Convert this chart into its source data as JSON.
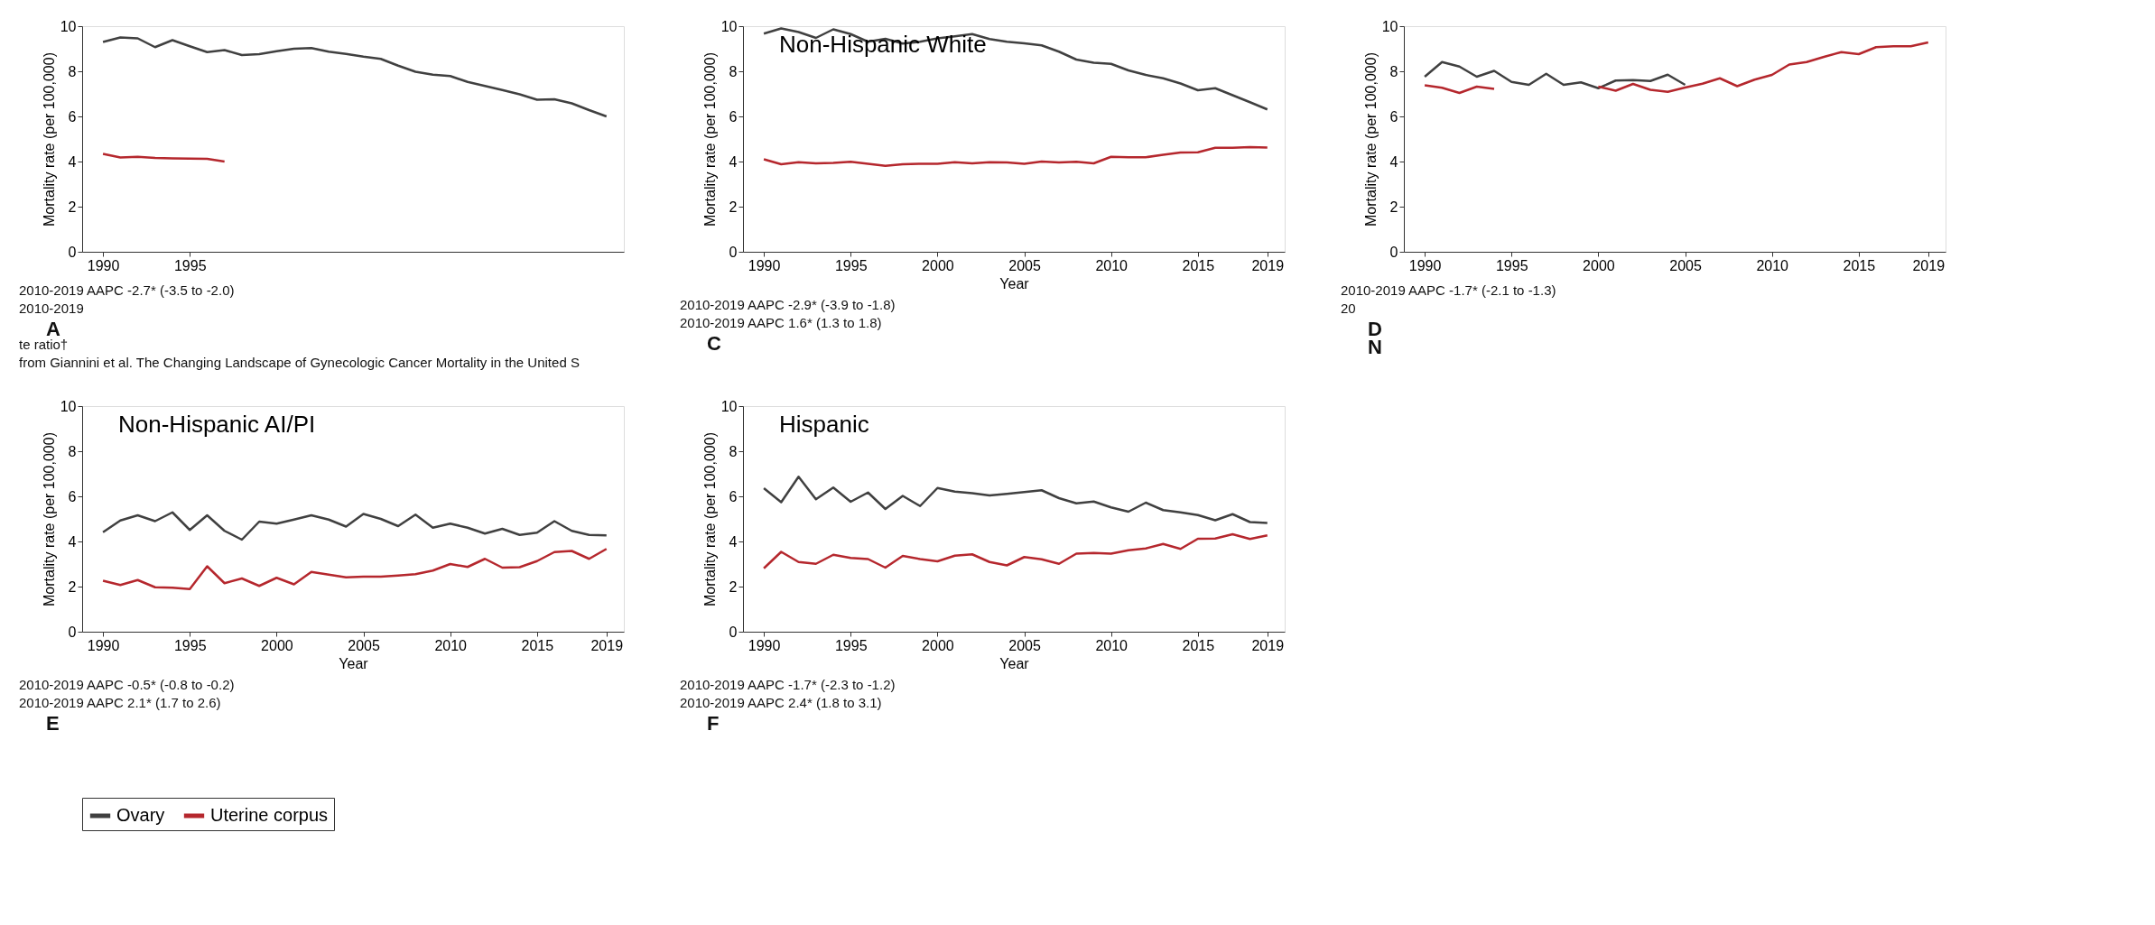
{
  "chart_data": [
    {
      "type": "line",
      "ylabel": "Mortality rate (per 100,000)",
      "xlim": [
        1988.8,
        2020
      ],
      "xticks": [
        1990,
        1995
      ],
      "ylim": [
        0,
        10
      ],
      "yticks": [
        0,
        2,
        4,
        6,
        8,
        10
      ],
      "tick_labels": "xy",
      "legend": "bottom",
      "grid": false,
      "x": [
        1990,
        1991,
        1992,
        1993,
        1994,
        1995,
        1996,
        1997,
        1998,
        1999,
        2000,
        2001,
        2002,
        2003,
        2004,
        2005,
        2006,
        2007,
        2008,
        2009,
        2010,
        2011,
        2012,
        2013,
        2014,
        2015,
        2016,
        2017,
        2018,
        2019
      ],
      "series": [
        {
          "name": "Ovary",
          "color": "#404040",
          "values": [
            9.3,
            9.5,
            9.46,
            9.07,
            9.38,
            9.11,
            8.85,
            8.94,
            8.72,
            8.76,
            8.89,
            9.0,
            9.03,
            8.87,
            8.77,
            8.65,
            8.55,
            8.25,
            7.98,
            7.85,
            7.79,
            7.53,
            7.35,
            7.17,
            6.98,
            6.74,
            6.76,
            6.58,
            6.28,
            6.0
          ]
        },
        {
          "name": "Uterine corpus",
          "color": "#b5272d",
          "values": [
            4.34,
            4.18,
            4.21,
            4.16,
            4.14,
            4.13,
            4.12,
            4.0,
            null,
            null,
            null,
            null,
            null,
            null,
            null,
            null,
            null,
            null,
            null,
            null,
            null,
            null,
            null,
            null,
            null,
            null,
            null,
            null,
            null,
            null
          ]
        }
      ],
      "annotations": [
        "2010-2019 AAPC -2.7* (-3.5 to -2.0)",
        "2010-2019",
        "A",
        "te ratio†",
        "from Giannini et al. The Changing Landscape of Gynecologic Cancer Mortality in the United S"
      ]
    },
    {
      "type": "line",
      "title": "Non-Hispanic White",
      "xlabel": "Year",
      "ylabel": "Mortality rate (per 100,000)",
      "xlim": [
        1988.8,
        2020
      ],
      "xticks": [
        1990,
        1995,
        2000,
        2005,
        2010,
        2015,
        2019
      ],
      "ylim": [
        0,
        10
      ],
      "yticks": [
        0,
        2,
        4,
        6,
        8,
        10
      ],
      "grid": false,
      "legend": false,
      "x": [
        1990,
        1991,
        1992,
        1993,
        1994,
        1995,
        1996,
        1997,
        1998,
        1999,
        2000,
        2001,
        2002,
        2003,
        2004,
        2005,
        2006,
        2007,
        2008,
        2009,
        2010,
        2011,
        2012,
        2013,
        2014,
        2015,
        2016,
        2017,
        2018,
        2019
      ],
      "series": [
        {
          "color": "#404040",
          "values": [
            9.67,
            9.9,
            9.74,
            9.48,
            9.86,
            9.65,
            9.31,
            9.44,
            9.23,
            9.31,
            9.46,
            9.55,
            9.65,
            9.43,
            9.31,
            9.24,
            9.15,
            8.87,
            8.52,
            8.38,
            8.33,
            8.04,
            7.84,
            7.69,
            7.46,
            7.16,
            7.25,
            6.94,
            6.63,
            6.31
          ]
        },
        {
          "color": "#b5272d",
          "values": [
            4.1,
            3.88,
            3.97,
            3.92,
            3.94,
            3.99,
            3.9,
            3.81,
            3.88,
            3.9,
            3.9,
            3.97,
            3.92,
            3.97,
            3.96,
            3.9,
            4.0,
            3.96,
            3.99,
            3.92,
            4.21,
            4.19,
            4.19,
            4.3,
            4.4,
            4.41,
            4.61,
            4.61,
            4.64,
            4.62
          ]
        }
      ],
      "annotations": [
        "2010-2019 AAPC -2.9* (-3.9 to -1.8)",
        "2010-2019 AAPC 1.6* (1.3 to 1.8)",
        "C"
      ]
    },
    {
      "type": "line",
      "ylabel": "Mortality rate (per 100,000)",
      "xlim": [
        1988.8,
        2020
      ],
      "xticks": [
        1990,
        1995,
        2000,
        2005,
        2010,
        2015,
        2019
      ],
      "ylim": [
        0,
        10
      ],
      "yticks": [
        0,
        2,
        4,
        6,
        8,
        10
      ],
      "grid": false,
      "legend": false,
      "x": [
        1990,
        1991,
        1992,
        1993,
        1994,
        1995,
        1996,
        1997,
        1998,
        1999,
        2000,
        2001,
        2002,
        2003,
        2004,
        2005,
        2006,
        2007,
        2008,
        2009,
        2010,
        2011,
        2012,
        2013,
        2014,
        2015,
        2016,
        2017,
        2018,
        2019
      ],
      "series": [
        {
          "color": "#404040",
          "values": [
            7.76,
            8.41,
            8.21,
            7.76,
            8.02,
            7.53,
            7.4,
            7.89,
            7.4,
            7.51,
            7.25,
            7.59,
            7.61,
            7.57,
            7.85,
            7.4,
            null,
            null,
            null,
            null,
            null,
            null,
            null,
            null,
            null,
            null,
            null,
            null,
            null,
            null
          ]
        },
        {
          "color": "#b5272d",
          "values": [
            7.38,
            7.27,
            7.04,
            7.32,
            7.22,
            null,
            null,
            null,
            null,
            null,
            7.32,
            7.14,
            7.44,
            7.18,
            7.09,
            7.28,
            7.45,
            7.69,
            7.34,
            7.63,
            7.84,
            8.3,
            8.41,
            8.64,
            8.85,
            8.76,
            9.07,
            9.11,
            9.11,
            9.28
          ]
        }
      ],
      "annotations": [
        "2010-2019 AAPC -1.7* (-2.1 to -1.3)",
        "20",
        "D",
        "N"
      ]
    },
    {
      "type": "line",
      "title": "Non-Hispanic AI/PI",
      "xlabel": "Year",
      "ylabel": "Mortality rate (per 100,000)",
      "xlim": [
        1988.8,
        2020
      ],
      "xticks": [
        1990,
        1995,
        2000,
        2005,
        2010,
        2015,
        2019
      ],
      "ylim": [
        0,
        10
      ],
      "yticks": [
        0,
        2,
        4,
        6,
        8,
        10
      ],
      "grid": false,
      "legend": false,
      "x": [
        1990,
        1991,
        1992,
        1993,
        1994,
        1995,
        1996,
        1997,
        1998,
        1999,
        2000,
        2001,
        2002,
        2003,
        2004,
        2005,
        2006,
        2007,
        2008,
        2009,
        2010,
        2011,
        2012,
        2013,
        2014,
        2015,
        2016,
        2017,
        2018,
        2019
      ],
      "series": [
        {
          "color": "#404040",
          "values": [
            4.41,
            4.93,
            5.16,
            4.9,
            5.29,
            4.51,
            5.16,
            4.47,
            4.08,
            4.88,
            4.79,
            4.97,
            5.16,
            4.97,
            4.66,
            5.22,
            5.0,
            4.68,
            5.19,
            4.61,
            4.79,
            4.61,
            4.35,
            4.56,
            4.29,
            4.39,
            4.9,
            4.47,
            4.29,
            4.27
          ]
        },
        {
          "color": "#b5272d",
          "values": [
            2.26,
            2.07,
            2.29,
            1.97,
            1.95,
            1.89,
            2.9,
            2.15,
            2.36,
            2.03,
            2.39,
            2.1,
            2.65,
            2.53,
            2.41,
            2.44,
            2.44,
            2.49,
            2.55,
            2.71,
            3.0,
            2.87,
            3.23,
            2.84,
            2.86,
            3.13,
            3.53,
            3.58,
            3.23,
            3.67
          ]
        }
      ],
      "annotations": [
        "2010-2019 AAPC -0.5* (-0.8 to -0.2)",
        "2010-2019 AAPC 2.1* (1.7 to 2.6)",
        "E"
      ]
    },
    {
      "type": "line",
      "title": "Hispanic",
      "xlabel": "Year",
      "ylabel": "Mortality rate (per 100,000)",
      "xlim": [
        1988.8,
        2020
      ],
      "xticks": [
        1990,
        1995,
        2000,
        2005,
        2010,
        2015,
        2019
      ],
      "ylim": [
        0,
        10
      ],
      "yticks": [
        0,
        2,
        4,
        6,
        8,
        10
      ],
      "grid": false,
      "legend": false,
      "x": [
        1990,
        1991,
        1992,
        1993,
        1994,
        1995,
        1996,
        1997,
        1998,
        1999,
        2000,
        2001,
        2002,
        2003,
        2004,
        2005,
        2006,
        2007,
        2008,
        2009,
        2010,
        2011,
        2012,
        2013,
        2014,
        2015,
        2016,
        2017,
        2018,
        2019
      ],
      "series": [
        {
          "color": "#404040",
          "values": [
            6.36,
            5.74,
            6.87,
            5.87,
            6.39,
            5.76,
            6.17,
            5.44,
            6.02,
            5.57,
            6.37,
            6.21,
            6.14,
            6.04,
            6.11,
            6.19,
            6.27,
            5.92,
            5.69,
            5.77,
            5.51,
            5.32,
            5.72,
            5.39,
            5.29,
            5.17,
            4.94,
            5.21,
            4.86,
            4.82
          ]
        },
        {
          "color": "#b5272d",
          "values": [
            2.81,
            3.54,
            3.09,
            3.01,
            3.41,
            3.27,
            3.22,
            2.84,
            3.36,
            3.22,
            3.12,
            3.37,
            3.43,
            3.09,
            2.94,
            3.31,
            3.21,
            3.01,
            3.46,
            3.49,
            3.46,
            3.61,
            3.69,
            3.89,
            3.67,
            4.12,
            4.13,
            4.32,
            4.11,
            4.27
          ]
        }
      ],
      "annotations": [
        "2010-2019 AAPC -1.7* (-2.3 to -1.2)",
        "2010-2019 AAPC 2.4* (1.8 to 3.1)",
        "F"
      ]
    }
  ]
}
